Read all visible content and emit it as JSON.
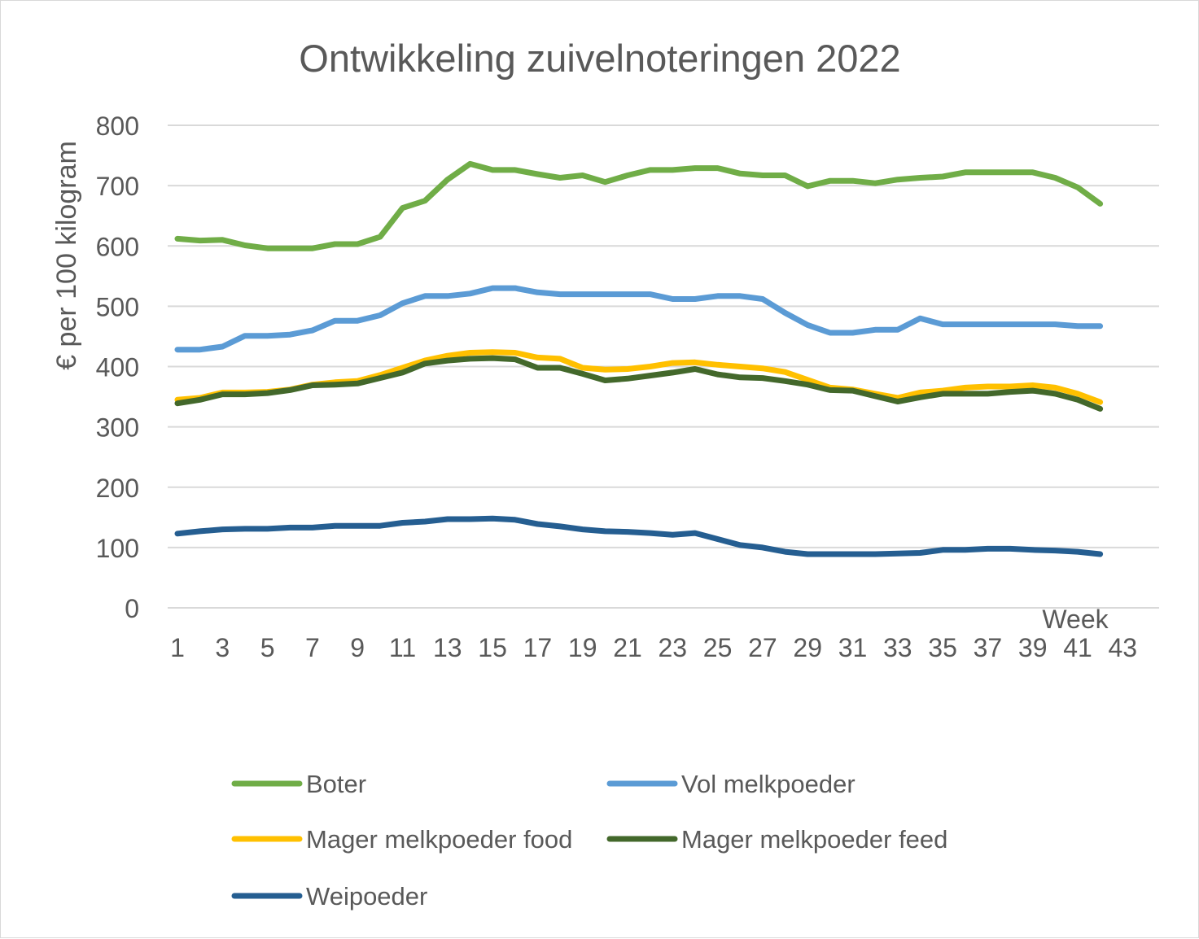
{
  "chart_data": {
    "type": "line",
    "title": "Ontwikkeling zuivelnoteringen 2022",
    "xlabel": "Week",
    "ylabel": "€ per 100 kilogram",
    "ylim": [
      0,
      800
    ],
    "yticks": [
      0,
      100,
      200,
      300,
      400,
      500,
      600,
      700,
      800
    ],
    "x_tick_labels": [
      "1",
      "3",
      "5",
      "7",
      "9",
      "11",
      "13",
      "15",
      "17",
      "19",
      "21",
      "23",
      "25",
      "27",
      "29",
      "31",
      "33",
      "35",
      "37",
      "39",
      "41",
      "43"
    ],
    "x_range": [
      1,
      43
    ],
    "grid": "horizontal",
    "legend_position": "bottom",
    "x": [
      1,
      2,
      3,
      4,
      5,
      6,
      7,
      8,
      9,
      10,
      11,
      12,
      13,
      14,
      15,
      16,
      17,
      18,
      19,
      20,
      21,
      22,
      23,
      24,
      25,
      26,
      27,
      28,
      29,
      30,
      31,
      32,
      33,
      34,
      35,
      36,
      37,
      38,
      39,
      40,
      41,
      42
    ],
    "series": [
      {
        "name": "Boter",
        "color": "#70AD47",
        "values": [
          612,
          609,
          610,
          601,
          596,
          596,
          596,
          603,
          603,
          615,
          663,
          675,
          710,
          736,
          726,
          726,
          719,
          713,
          717,
          706,
          717,
          726,
          726,
          729,
          729,
          720,
          717,
          717,
          699,
          708,
          708,
          704,
          710,
          713,
          715,
          722,
          722,
          722,
          722,
          713,
          697,
          670
        ]
      },
      {
        "name": "Vol melkpoeder",
        "color": "#5B9BD5",
        "values": [
          428,
          428,
          433,
          451,
          451,
          453,
          460,
          476,
          476,
          485,
          505,
          517,
          517,
          521,
          530,
          530,
          523,
          520,
          520,
          520,
          520,
          520,
          512,
          512,
          517,
          517,
          512,
          489,
          469,
          456,
          456,
          461,
          461,
          480,
          470,
          470,
          470,
          470,
          470,
          470,
          467,
          467
        ]
      },
      {
        "name": "Mager melkpoeder food",
        "color": "#FFC000",
        "values": [
          345,
          348,
          357,
          357,
          358,
          362,
          370,
          374,
          376,
          386,
          398,
          410,
          418,
          423,
          424,
          423,
          415,
          413,
          398,
          395,
          396,
          400,
          406,
          407,
          403,
          400,
          397,
          391,
          378,
          365,
          362,
          355,
          348,
          357,
          360,
          365,
          367,
          367,
          369,
          365,
          355,
          341
        ]
      },
      {
        "name": "Mager melkpoeder feed",
        "color": "#43682B",
        "values": [
          339,
          345,
          354,
          354,
          356,
          361,
          369,
          370,
          372,
          381,
          390,
          405,
          410,
          413,
          414,
          412,
          398,
          398,
          388,
          377,
          380,
          385,
          390,
          396,
          387,
          382,
          381,
          376,
          370,
          361,
          360,
          351,
          342,
          349,
          355,
          355,
          355,
          358,
          360,
          355,
          345,
          330
        ]
      },
      {
        "name": "Weipoeder",
        "color": "#255E91",
        "values": [
          123,
          127,
          130,
          131,
          131,
          133,
          133,
          136,
          136,
          136,
          141,
          143,
          147,
          147,
          148,
          146,
          139,
          135,
          130,
          127,
          126,
          124,
          121,
          124,
          114,
          104,
          100,
          93,
          89,
          89,
          89,
          89,
          90,
          91,
          96,
          96,
          98,
          98,
          96,
          95,
          93,
          89
        ]
      }
    ]
  }
}
